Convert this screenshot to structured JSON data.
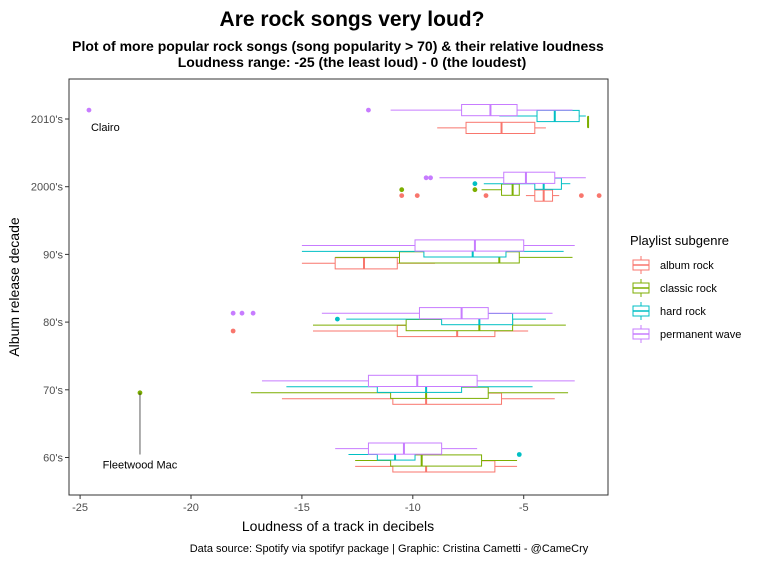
{
  "chart_data": {
    "type": "boxplot",
    "title": "Are rock songs very loud?",
    "subtitle_lines": [
      "Plot of more popular rock songs (song popularity > 70) & their relative loudness",
      "Loudness range: -25 (the least loud) - 0 (the loudest)"
    ],
    "xlabel": "Loudness of a track in decibels",
    "ylabel": "Album release decade",
    "caption": "Data source: Spotify via spotifyr package | Graphic: Cristina Cametti - @CameCry",
    "xlim": [
      -25.5,
      -1.2
    ],
    "x_ticks": [
      -25,
      -20,
      -15,
      -10,
      -5
    ],
    "x_tick_labels": [
      "-25",
      "-20",
      "-15",
      "-10",
      "-5"
    ],
    "categories": [
      "60's",
      "70's",
      "80's",
      "90's",
      "2000's",
      "2010's"
    ],
    "legend_title": "Playlist subgenre",
    "legend_position": "right",
    "grid": false,
    "series": [
      {
        "name": "album rock",
        "color": "#F8766D",
        "boxes": [
          {
            "category": "60's",
            "whisker_low": -12.6,
            "q1": -10.9,
            "median": -9.4,
            "q3": -6.3,
            "whisker_high": -5.3
          },
          {
            "category": "70's",
            "whisker_low": -15.9,
            "q1": -10.9,
            "median": -9.4,
            "q3": -6.0,
            "whisker_high": -3.6
          },
          {
            "category": "80's",
            "whisker_low": -14.5,
            "q1": -10.7,
            "median": -8.0,
            "q3": -6.3,
            "whisker_high": -4.8
          },
          {
            "category": "90's",
            "whisker_low": -15.0,
            "q1": -13.5,
            "median": -12.2,
            "q3": -10.7,
            "whisker_high": -9.0
          },
          {
            "category": "2000's",
            "whisker_low": -4.9,
            "q1": -4.5,
            "median": -4.1,
            "q3": -3.7,
            "whisker_high": -3.4
          },
          {
            "category": "2010's",
            "whisker_low": -8.9,
            "q1": -7.6,
            "median": -6.0,
            "q3": -4.5,
            "whisker_high": -4.0
          }
        ],
        "outliers": [
          {
            "category": "80's",
            "x": -18.1
          },
          {
            "category": "2000's",
            "x": -10.5
          },
          {
            "category": "2000's",
            "x": -9.8
          },
          {
            "category": "2000's",
            "x": -6.7
          },
          {
            "category": "2000's",
            "x": -2.4
          },
          {
            "category": "2000's",
            "x": -1.6
          }
        ]
      },
      {
        "name": "classic rock",
        "color": "#7CAE00",
        "boxes": [
          {
            "category": "60's",
            "whisker_low": -12.6,
            "q1": -11.0,
            "median": -9.6,
            "q3": -6.9,
            "whisker_high": -5.3
          },
          {
            "category": "70's",
            "whisker_low": -17.3,
            "q1": -11.0,
            "median": -9.4,
            "q3": -6.6,
            "whisker_high": -3.0
          },
          {
            "category": "80's",
            "whisker_low": -14.5,
            "q1": -10.3,
            "median": -7.0,
            "q3": -5.5,
            "whisker_high": -3.1
          },
          {
            "category": "90's",
            "whisker_low": -13.5,
            "q1": -10.6,
            "median": -6.1,
            "q3": -5.2,
            "whisker_high": -2.8
          },
          {
            "category": "2000's",
            "whisker_low": -6.9,
            "q1": -6.0,
            "median": -5.5,
            "q3": -5.2,
            "whisker_high": -5.2
          },
          {
            "category": "2010's",
            "whisker_low": -2.1,
            "q1": -2.1,
            "median": -2.1,
            "q3": -2.1,
            "whisker_high": -2.1
          }
        ],
        "outliers": [
          {
            "category": "70's",
            "x": -22.3
          },
          {
            "category": "2000's",
            "x": -10.5
          },
          {
            "category": "2000's",
            "x": -7.2
          }
        ]
      },
      {
        "name": "hard rock",
        "color": "#00BFC4",
        "boxes": [
          {
            "category": "60's",
            "whisker_low": -12.9,
            "q1": -11.6,
            "median": -10.8,
            "q3": -9.9,
            "whisker_high": -9.9
          },
          {
            "category": "70's",
            "whisker_low": -15.7,
            "q1": -11.6,
            "median": -9.4,
            "q3": -7.8,
            "whisker_high": -4.6
          },
          {
            "category": "80's",
            "whisker_low": -13.0,
            "q1": -8.7,
            "median": -7.0,
            "q3": -5.5,
            "whisker_high": -4.0
          },
          {
            "category": "90's",
            "whisker_low": -15.0,
            "q1": -9.5,
            "median": -7.3,
            "q3": -5.8,
            "whisker_high": -3.2
          },
          {
            "category": "2000's",
            "whisker_low": -6.8,
            "q1": -4.5,
            "median": -4.1,
            "q3": -3.3,
            "whisker_high": -2.9
          },
          {
            "category": "2010's",
            "whisker_low": -6.1,
            "q1": -4.4,
            "median": -3.6,
            "q3": -2.5,
            "whisker_high": -2.2
          }
        ],
        "outliers": [
          {
            "category": "60's",
            "x": -5.2
          },
          {
            "category": "80's",
            "x": -13.4
          },
          {
            "category": "2000's",
            "x": -7.2
          }
        ]
      },
      {
        "name": "permanent wave",
        "color": "#C77CFF",
        "boxes": [
          {
            "category": "60's",
            "whisker_low": -13.5,
            "q1": -12.0,
            "median": -10.4,
            "q3": -8.7,
            "whisker_high": -7.1
          },
          {
            "category": "70's",
            "whisker_low": -16.8,
            "q1": -12.0,
            "median": -9.8,
            "q3": -7.1,
            "whisker_high": -2.7
          },
          {
            "category": "80's",
            "whisker_low": -14.1,
            "q1": -9.7,
            "median": -7.8,
            "q3": -6.6,
            "whisker_high": -3.7
          },
          {
            "category": "90's",
            "whisker_low": -15.0,
            "q1": -9.9,
            "median": -7.2,
            "q3": -5.0,
            "whisker_high": -2.7
          },
          {
            "category": "2000's",
            "whisker_low": -8.8,
            "q1": -5.9,
            "median": -4.9,
            "q3": -3.6,
            "whisker_high": -2.2
          },
          {
            "category": "2010's",
            "whisker_low": -11.0,
            "q1": -7.8,
            "median": -6.5,
            "q3": -5.3,
            "whisker_high": -2.8
          }
        ],
        "outliers": [
          {
            "category": "80's",
            "x": -18.1
          },
          {
            "category": "80's",
            "x": -17.7
          },
          {
            "category": "80's",
            "x": -17.2
          },
          {
            "category": "2000's",
            "x": -9.4
          },
          {
            "category": "2000's",
            "x": -9.2
          },
          {
            "category": "2010's",
            "x": -24.6
          },
          {
            "category": "2010's",
            "x": -12.0
          }
        ]
      }
    ],
    "annotations": [
      {
        "text": "Clairo",
        "category": "2010's",
        "series": "permanent wave",
        "x": -24.6
      },
      {
        "text": "Fleetwood Mac",
        "category": "70's",
        "series": "classic rock",
        "x": -22.3
      }
    ]
  }
}
